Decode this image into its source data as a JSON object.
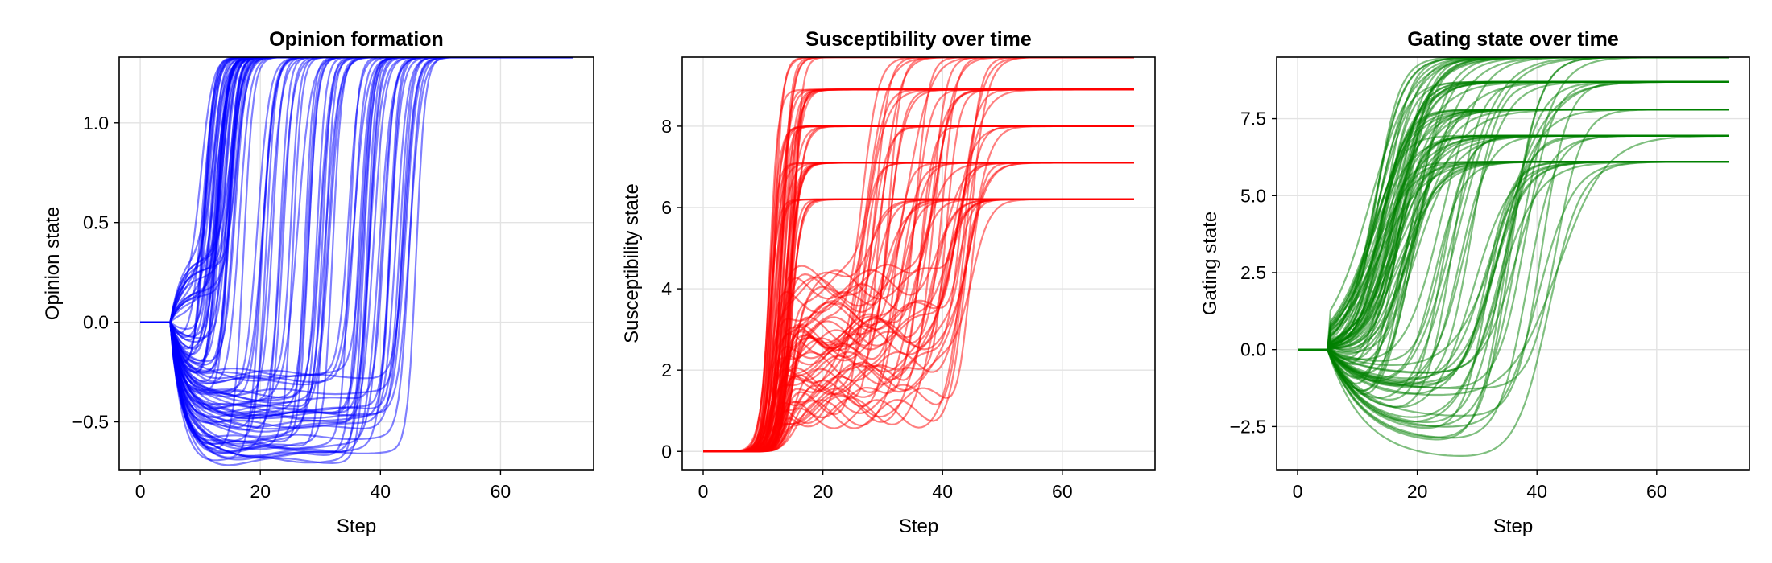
{
  "chart_data": [
    {
      "type": "line",
      "title": "Opinion formation",
      "xlabel": "Step",
      "ylabel": "Opinion state",
      "xlim": [
        -3.5,
        75.5
      ],
      "ylim": [
        -0.74,
        1.33
      ],
      "xticks": [
        0,
        20,
        40,
        60
      ],
      "xtick_labels": [
        "0",
        "20",
        "40",
        "60"
      ],
      "yticks": [
        -0.5,
        0.0,
        0.5,
        1.0
      ],
      "ytick_labels": [
        "−0.5",
        "0.0",
        "0.5",
        "1.0"
      ],
      "grid": true,
      "color": "#0000ff",
      "series_count": 100,
      "x_range": [
        0,
        72
      ],
      "representative_series": [
        {
          "x": [
            0,
            5,
            7,
            10,
            12,
            14,
            16,
            20,
            72
          ],
          "y": [
            0,
            0,
            0.35,
            0.05,
            0.6,
            1.2,
            1.32,
            1.33,
            1.33
          ]
        },
        {
          "x": [
            0,
            5,
            8,
            12,
            16,
            25,
            30,
            35,
            40,
            45,
            72
          ],
          "y": [
            0,
            0,
            -0.3,
            -0.4,
            -0.45,
            -0.47,
            -0.47,
            -0.4,
            0.5,
            1.25,
            1.33
          ]
        },
        {
          "x": [
            0,
            5,
            9,
            14,
            20,
            30,
            38,
            42,
            46,
            72
          ],
          "y": [
            0,
            0,
            -0.2,
            -0.6,
            -0.68,
            -0.66,
            -0.5,
            0.4,
            1.25,
            1.33
          ]
        },
        {
          "x": [
            0,
            5,
            10,
            15,
            22,
            28,
            33,
            40,
            72
          ],
          "y": [
            0,
            0,
            -0.1,
            -0.35,
            -0.42,
            -0.2,
            0.8,
            1.32,
            1.33
          ]
        }
      ]
    },
    {
      "type": "line",
      "title": "Susceptibility over time",
      "xlabel": "Step",
      "ylabel": "Susceptibility state",
      "xlim": [
        -3.5,
        75.5
      ],
      "ylim": [
        -0.45,
        9.7
      ],
      "xticks": [
        0,
        20,
        40,
        60
      ],
      "xtick_labels": [
        "0",
        "20",
        "40",
        "60"
      ],
      "yticks": [
        0,
        2,
        4,
        6,
        8
      ],
      "ytick_labels": [
        "0",
        "2",
        "4",
        "6",
        "8"
      ],
      "grid": true,
      "color": "#ff0000",
      "series_count": 100,
      "x_range": [
        0,
        72
      ],
      "plateau_levels": [
        6.2,
        7.1,
        8.0,
        8.9,
        9.7
      ],
      "representative_series": [
        {
          "x": [
            0,
            6,
            10,
            13,
            16,
            20,
            72
          ],
          "y": [
            0,
            0,
            0.5,
            3.5,
            7.5,
            8.0,
            8.0
          ]
        },
        {
          "x": [
            0,
            7,
            11,
            14,
            18,
            22,
            72
          ],
          "y": [
            0,
            0,
            0.7,
            4.5,
            8.6,
            8.9,
            8.9
          ]
        },
        {
          "x": [
            0,
            7,
            12,
            15,
            20,
            72
          ],
          "y": [
            0,
            0,
            1.5,
            5.0,
            6.2,
            6.2
          ]
        },
        {
          "x": [
            0,
            8,
            13,
            20,
            30,
            36,
            40,
            44,
            72
          ],
          "y": [
            0,
            0,
            0.5,
            1.6,
            2.0,
            1.9,
            4.0,
            7.8,
            8.0
          ]
        }
      ]
    },
    {
      "type": "line",
      "title": "Gating state over time",
      "xlabel": "Step",
      "ylabel": "Gating state",
      "xlim": [
        -3.5,
        75.5
      ],
      "ylim": [
        -3.9,
        9.5
      ],
      "xticks": [
        0,
        20,
        40,
        60
      ],
      "xtick_labels": [
        "0",
        "20",
        "40",
        "60"
      ],
      "yticks": [
        -2.5,
        0.0,
        2.5,
        5.0,
        7.5
      ],
      "ytick_labels": [
        "−2.5",
        "0.0",
        "2.5",
        "5.0",
        "7.5"
      ],
      "grid": true,
      "color": "#008000",
      "series_count": 100,
      "x_range": [
        0,
        72
      ],
      "plateau_levels": [
        6.1,
        6.95,
        7.8,
        8.7,
        9.5
      ],
      "representative_series": [
        {
          "x": [
            0,
            6,
            10,
            14,
            18,
            24,
            72
          ],
          "y": [
            0,
            0,
            0.5,
            3.5,
            6.5,
            7.7,
            7.8
          ]
        },
        {
          "x": [
            0,
            6,
            12,
            18,
            24,
            30,
            36,
            42,
            50,
            72
          ],
          "y": [
            0,
            0,
            -0.5,
            -2.0,
            -2.8,
            -2.5,
            0.5,
            5.0,
            7.6,
            7.8
          ]
        },
        {
          "x": [
            0,
            6,
            12,
            20,
            26,
            32,
            38,
            44,
            72
          ],
          "y": [
            0,
            0,
            -1.0,
            -3.2,
            -3.8,
            -2.0,
            2.5,
            6.5,
            7.0
          ]
        }
      ]
    }
  ]
}
